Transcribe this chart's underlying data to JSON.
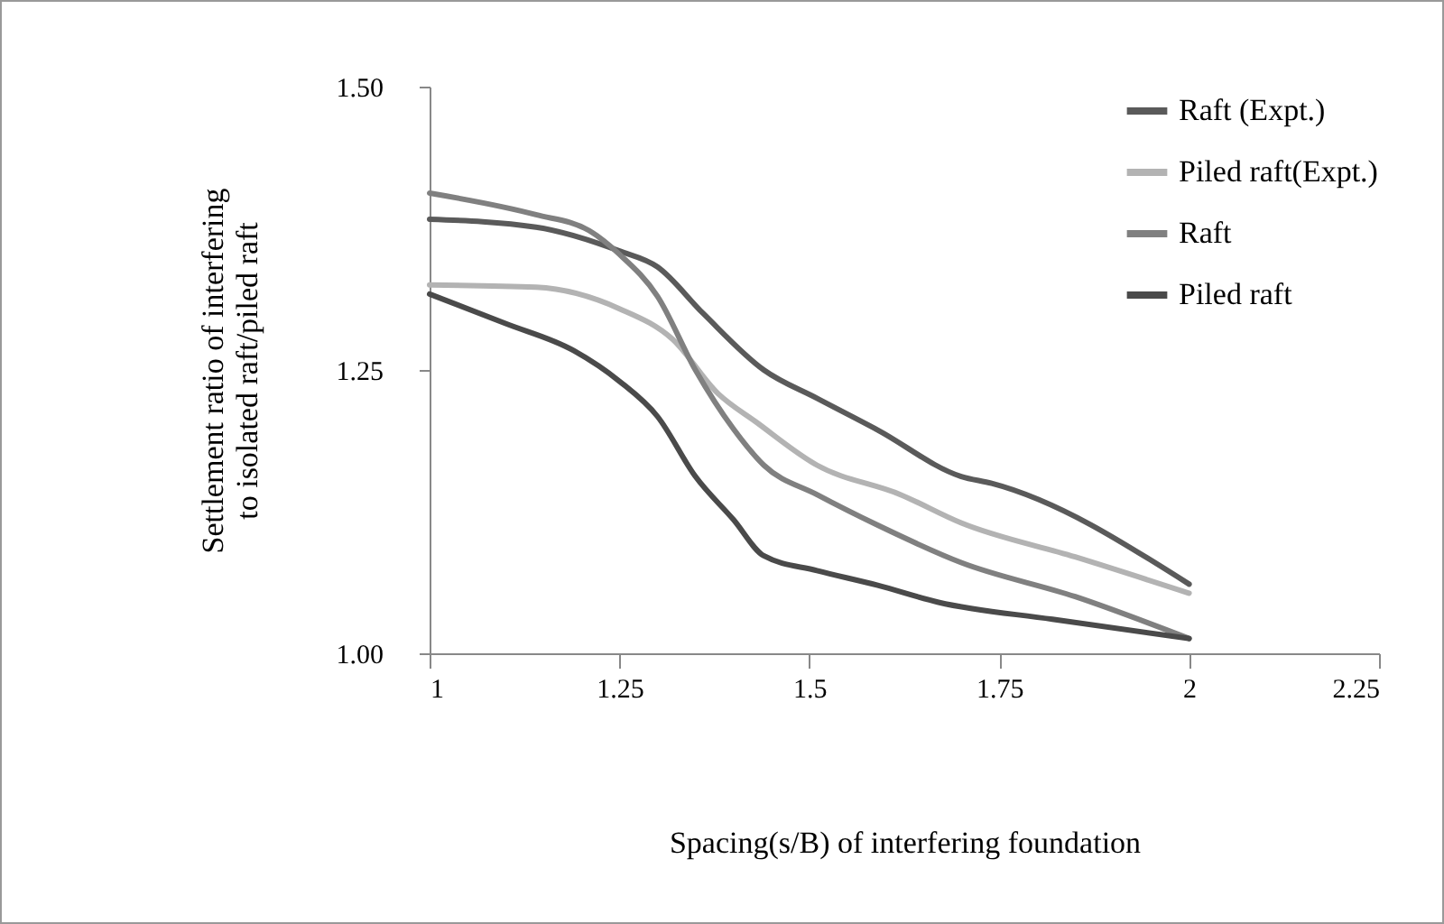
{
  "chart_data": {
    "type": "line",
    "xlabel": "Spacing(s/B) of interfering foundation",
    "ylabel": "Settlement ratio of interfering to isolated raft/piled raft",
    "xlim": [
      1,
      2.25
    ],
    "ylim": [
      1,
      1.5
    ],
    "xticks": [
      1,
      1.25,
      1.5,
      1.75,
      2,
      2.25
    ],
    "yticks": [
      {
        "value": 1,
        "label": "1.00"
      },
      {
        "value": 1.25,
        "label": "1.25"
      },
      {
        "value": 1.5,
        "label": "1.50"
      }
    ],
    "legend": "top right",
    "grid": false,
    "marker": "none",
    "line_style": "solid",
    "series": [
      {
        "name": "Raft (Expt.)",
        "color": "#5a5a5a",
        "x": [
          1,
          1.14,
          1.25,
          1.3,
          1.36,
          1.44,
          1.51,
          1.59,
          1.7,
          1.74,
          2
        ],
        "values": [
          1.383,
          1.376,
          1.355,
          1.341,
          1.3,
          1.25,
          1.225,
          1.197,
          1.156,
          1.15,
          1.061
        ]
      },
      {
        "name": "Piled raft(Expt.)",
        "color": "#b3b3b3",
        "x": [
          1,
          1.14,
          1.25,
          1.32,
          1.38,
          1.43,
          1.51,
          1.62,
          1.7,
          1.85,
          2
        ],
        "values": [
          1.325,
          1.323,
          1.304,
          1.277,
          1.229,
          1.204,
          1.166,
          1.14,
          1.115,
          1.085,
          1.053
        ]
      },
      {
        "name": "Raft",
        "color": "#808080",
        "x": [
          1,
          1.14,
          1.21,
          1.25,
          1.3,
          1.35,
          1.4,
          1.44,
          1.51,
          1.59,
          1.7,
          1.85,
          2
        ],
        "values": [
          1.406,
          1.387,
          1.373,
          1.352,
          1.315,
          1.25,
          1.198,
          1.166,
          1.14,
          1.113,
          1.08,
          1.05,
          1.013
        ]
      },
      {
        "name": "Piled raft",
        "color": "#4a4a4a",
        "x": [
          1,
          1.1,
          1.19,
          1.25,
          1.3,
          1.35,
          1.4,
          1.44,
          1.51,
          1.59,
          1.67,
          1.82,
          2
        ],
        "values": [
          1.317,
          1.291,
          1.267,
          1.24,
          1.209,
          1.156,
          1.118,
          1.086,
          1.073,
          1.06,
          1.045,
          1.03,
          1.013
        ]
      }
    ]
  }
}
